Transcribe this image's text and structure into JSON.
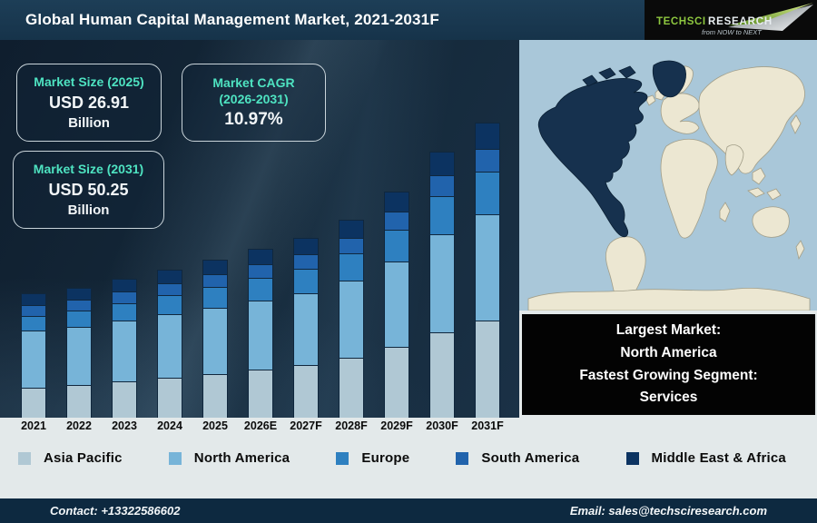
{
  "header": {
    "title": "Global Human Capital Management Market, 2021-2031F",
    "logo": {
      "brand_primary": "TECHSCI",
      "brand_secondary": "RESEARCH",
      "tagline": "from NOW to NEXT"
    }
  },
  "info_boxes": {
    "market_size_2025": {
      "title": "Market Size (2025)",
      "value": "USD 26.91",
      "unit": "Billion"
    },
    "market_cagr": {
      "title": "Market CAGR",
      "title_line2": "(2026-2031)",
      "value": "10.97%"
    },
    "market_size_2031": {
      "title": "Market Size (2031)",
      "value": "USD 50.25",
      "unit": "Billion"
    }
  },
  "chart_data": {
    "type": "bar",
    "stacked": true,
    "title": "Global Human Capital Management Market, 2021-2031F",
    "unit": "USD Billion",
    "categories": [
      "2021",
      "2022",
      "2023",
      "2024",
      "2025",
      "2026E",
      "2027F",
      "2028F",
      "2029F",
      "2030F",
      "2031F"
    ],
    "series": [
      {
        "name": "Asia Pacific",
        "color": "#b0c8d4",
        "values": [
          5.04,
          5.5,
          6.11,
          6.73,
          7.43,
          8.21,
          9.0,
          10.21,
          11.98,
          14.54,
          16.58
        ]
      },
      {
        "name": "North America",
        "color": "#77b4d8",
        "values": [
          9.66,
          9.95,
          10.43,
          10.84,
          11.3,
          11.81,
          12.24,
          13.14,
          14.59,
          16.76,
          18.09
        ]
      },
      {
        "name": "Europe",
        "color": "#2e80c0",
        "values": [
          2.52,
          2.71,
          2.96,
          3.21,
          3.5,
          3.82,
          4.13,
          4.63,
          5.38,
          6.46,
          7.29
        ]
      },
      {
        "name": "South America",
        "color": "#2163ac",
        "values": [
          1.79,
          1.86,
          1.98,
          2.08,
          2.2,
          2.33,
          2.45,
          2.68,
          3.02,
          3.52,
          3.87
        ]
      },
      {
        "name": "Middle East & Africa",
        "color": "#0c3361",
        "values": [
          2.0,
          2.08,
          2.22,
          2.34,
          2.48,
          2.63,
          2.78,
          3.04,
          3.43,
          4.02,
          4.42
        ]
      }
    ],
    "totals": [
      21.0,
      22.1,
      23.7,
      25.2,
      26.91,
      28.8,
      30.6,
      33.7,
      38.4,
      45.3,
      50.25
    ],
    "labeled_values": {
      "2025_total": "USD 26.91 Billion",
      "2031_total": "USD 50.25 Billion",
      "cagr_2026_2031": "10.97%"
    },
    "xlabel": "",
    "ylabel": "",
    "ylim": [
      0,
      52
    ],
    "grid": false,
    "legend_position": "bottom"
  },
  "map_panel": {
    "highlighted_region": "North America",
    "caption": {
      "line1": "Largest Market:",
      "line2": "North America",
      "line3": "Fastest Growing Segment:",
      "line4": "Services"
    }
  },
  "footer": {
    "contact": "Contact: +13322586602",
    "email": "Email: sales@techsciresearch.com"
  },
  "colors": {
    "header_bg": "#16334a",
    "chart_bg": "#142839",
    "accent_teal": "#4ee3c1",
    "light_band_bg": "#e3e9ea",
    "footer_bg": "#0d2940",
    "map_ocean": "#a9c7d9",
    "map_land": "#ece7d2",
    "map_highlight": "#16314e",
    "logo_green": "#8dc63f"
  }
}
